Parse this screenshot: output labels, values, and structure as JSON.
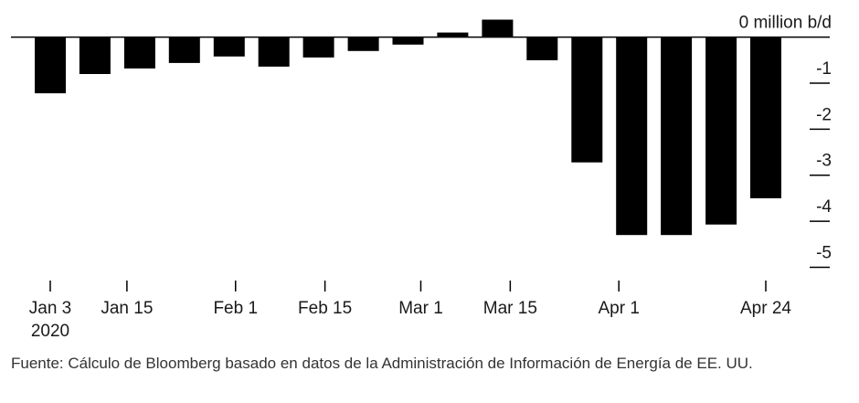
{
  "chart_data": {
    "type": "bar",
    "unit_label": "million b/d",
    "categories": [
      "2020-01-03",
      "2020-01-10",
      "2020-01-17",
      "2020-01-24",
      "2020-01-31",
      "2020-02-07",
      "2020-02-14",
      "2020-02-21",
      "2020-02-28",
      "2020-03-06",
      "2020-03-13",
      "2020-03-20",
      "2020-03-27",
      "2020-04-03",
      "2020-04-10",
      "2020-04-17",
      "2020-04-24"
    ],
    "values": [
      -1.22,
      -0.8,
      -0.68,
      -0.56,
      -0.42,
      -0.64,
      -0.44,
      -0.3,
      -0.16,
      0.1,
      0.38,
      -0.5,
      -2.72,
      -4.3,
      -4.3,
      -4.07,
      -3.5
    ],
    "ylim": [
      -5.15,
      0.45
    ],
    "yticks": [
      0,
      -1,
      -2,
      -3,
      -4,
      -5
    ],
    "ytick_labels": [
      "0",
      "-1",
      "-2",
      "-3",
      "-4",
      "-5"
    ],
    "xticks": [
      {
        "date": "2020-01-03",
        "label": "Jan 3",
        "sublabel": "2020"
      },
      {
        "date": "2020-01-15",
        "label": "Jan 15"
      },
      {
        "date": "2020-02-01",
        "label": "Feb 1"
      },
      {
        "date": "2020-02-15",
        "label": "Feb 15"
      },
      {
        "date": "2020-03-01",
        "label": "Mar 1"
      },
      {
        "date": "2020-03-15",
        "label": "Mar 15"
      },
      {
        "date": "2020-04-01",
        "label": "Apr 1"
      },
      {
        "date": "2020-04-24",
        "label": "Apr 24"
      }
    ],
    "colors": {
      "bars": "#000000",
      "axis": "#000000",
      "text": "#1a1a1a"
    },
    "grid": false
  },
  "footer": {
    "source": "Fuente: Cálculo de Bloomberg basado en datos de la Administración de Información de Energía de EE. UU."
  }
}
